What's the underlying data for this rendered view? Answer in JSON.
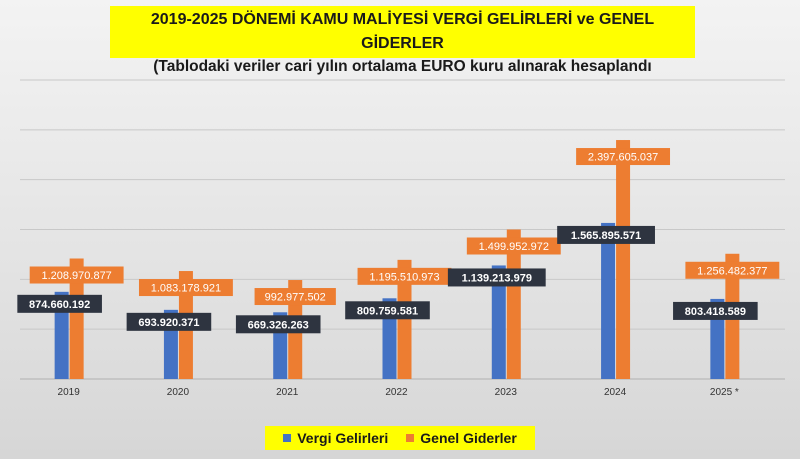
{
  "title": {
    "line1": "2019-2025 DÖNEMİ KAMU MALİYESİ VERGİ GELİRLERİ ve GENEL GİDERLER",
    "line2": "(Tablodaki veriler cari yılın ortalama EURO kuru alınarak hesaplandı"
  },
  "legend": {
    "items": [
      {
        "label": "Vergi Gelirleri",
        "color": "#4472c4"
      },
      {
        "label": "Genel Giderler",
        "color": "#ed7d31"
      }
    ]
  },
  "chart_data": {
    "type": "bar",
    "categories": [
      "2019",
      "2020",
      "2021",
      "2022",
      "2023",
      "2024",
      "2025 *"
    ],
    "series": [
      {
        "name": "Vergi Gelirleri",
        "color": "#4472c4",
        "values": [
          874660192,
          693920371,
          669326263,
          809759581,
          1139213979,
          1565895571,
          803418589
        ],
        "labels": [
          "874.660.192",
          "693.920.371",
          "669.326.263",
          "809.759.581",
          "1.139.213.979",
          "1.565.895.571",
          "803.418.589"
        ]
      },
      {
        "name": "Genel Giderler",
        "color": "#ed7d31",
        "values": [
          1208970877,
          1083178921,
          992977502,
          1195510973,
          1499952972,
          2397605037,
          1256482377
        ],
        "labels": [
          "1.208.970.877",
          "1.083.178.921",
          "992.977.502",
          "1.195.510.973",
          "1.499.952.972",
          "2.397.605.037",
          "1.256.482.377"
        ]
      }
    ],
    "ylim": [
      0,
      3000000000
    ],
    "grid": true,
    "legend_position": "bottom"
  }
}
